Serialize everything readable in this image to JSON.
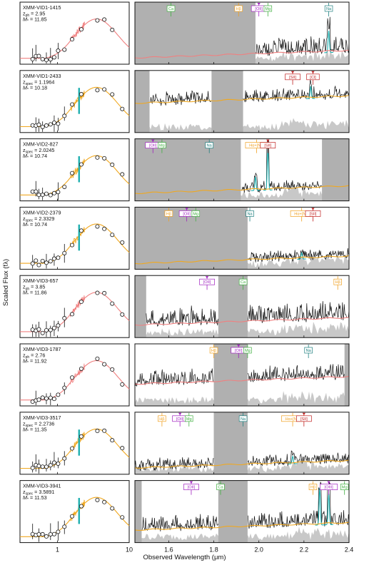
{
  "axes": {
    "ylabel": "Scaled Flux (fλ)",
    "xlabel": "Observed Wavelength (μm)",
    "sed_ticks": [
      "1",
      "10"
    ],
    "spec_ticks": [
      "1.6",
      "1.8",
      "2.0",
      "2.2",
      "2.4"
    ]
  },
  "colors": {
    "sed_photz": "#f08080",
    "sed_spec": "#f0a820",
    "line_fit": "#20b0b0",
    "mask": "#b0b0b0",
    "noise": "#c8c8c8",
    "tag_orange": "#f0a020",
    "tag_purple": "#a020c0",
    "tag_green": "#40b040",
    "tag_teal": "#208080",
    "tag_red": "#c02020"
  },
  "panels": [
    {
      "name": "XMM-VID1-1415",
      "z": "z_ph = 2.95",
      "mass": "M* = 11.85",
      "zkind": "ph",
      "zval": "2.95",
      "mval": "11.85",
      "tags": [
        {
          "t": "Ca",
          "c": "tag_green",
          "x": 1.61
        },
        {
          "t": "Hβ",
          "c": "tag_orange",
          "x": 1.91
        },
        {
          "t": "[OII]",
          "c": "tag_purple",
          "x": 2.0
        },
        {
          "t": "Mg",
          "c": "tag_green",
          "x": 2.04
        },
        {
          "t": "Na",
          "c": "tag_teal",
          "x": 2.31
        }
      ]
    },
    {
      "name": "XMM-VID1-2433",
      "z": "z_spec = 1.1964",
      "mass": "M* = 10.18",
      "zkind": "spec",
      "zval": "1.1964",
      "mval": "10.18",
      "tags": [
        {
          "t": "[SII]",
          "c": "tag_red",
          "x": 2.15
        },
        {
          "t": "[Cl]",
          "c": "tag_red",
          "x": 2.24
        }
      ]
    },
    {
      "name": "XMM-VID2-827",
      "z": "z_spec = 2.0245",
      "mass": "M* = 10.74",
      "zkind": "spec",
      "zval": "2.0245",
      "mval": "10.74",
      "tags": [
        {
          "t": "[OII]",
          "c": "tag_purple",
          "x": 1.53
        },
        {
          "t": "Mg",
          "c": "tag_green",
          "x": 1.57
        },
        {
          "t": "Na",
          "c": "tag_teal",
          "x": 1.78
        },
        {
          "t": "Hα+[NII]",
          "c": "tag_orange",
          "x": 1.99
        },
        {
          "t": "[SII]",
          "c": "tag_red",
          "x": 2.04
        }
      ]
    },
    {
      "name": "XMM-VID2-2379",
      "z": "z_spec = 2.3329",
      "mass": "M* = 10.74",
      "zkind": "spec",
      "zval": "2.3329",
      "mval": "10.74",
      "tags": [
        {
          "t": "Hβ",
          "c": "tag_orange",
          "x": 1.6
        },
        {
          "t": "[OII]",
          "c": "tag_purple",
          "x": 1.68
        },
        {
          "t": "Mg",
          "c": "tag_green",
          "x": 1.72
        },
        {
          "t": "Na",
          "c": "tag_teal",
          "x": 1.96
        },
        {
          "t": "Hα+[NII]",
          "c": "tag_orange",
          "x": 2.19
        },
        {
          "t": "[SII]",
          "c": "tag_red",
          "x": 2.24
        }
      ]
    },
    {
      "name": "XMM-VID3-657",
      "z": "z_ph = 3.85",
      "mass": "M* = 11.86",
      "zkind": "ph",
      "zval": "3.85",
      "mval": "11.86",
      "tags": [
        {
          "t": "[OII]",
          "c": "tag_purple",
          "x": 1.77
        },
        {
          "t": "Ca",
          "c": "tag_green",
          "x": 1.93
        },
        {
          "t": "Hβ",
          "c": "tag_orange",
          "x": 2.35
        }
      ]
    },
    {
      "name": "XMM-VID3-1787",
      "z": "z_ph = 2.76",
      "mass": "M* = 11.92",
      "zkind": "ph",
      "zval": "2.76",
      "mval": "11.92",
      "tags": [
        {
          "t": "Hβ",
          "c": "tag_orange",
          "x": 1.8
        },
        {
          "t": "[OII]",
          "c": "tag_purple",
          "x": 1.91
        },
        {
          "t": "Mg",
          "c": "tag_green",
          "x": 1.95
        },
        {
          "t": "Na",
          "c": "tag_teal",
          "x": 2.22
        }
      ]
    },
    {
      "name": "XMM-VID3-3517",
      "z": "z_spec = 2.2736",
      "mass": "M* = 11.35",
      "zkind": "spec",
      "zval": "2.2736",
      "mval": "11.35",
      "tags": [
        {
          "t": "Hβ",
          "c": "tag_orange",
          "x": 1.57
        },
        {
          "t": "[OII]",
          "c": "tag_purple",
          "x": 1.65
        },
        {
          "t": "Mg",
          "c": "tag_green",
          "x": 1.69
        },
        {
          "t": "Na",
          "c": "tag_teal",
          "x": 1.93
        },
        {
          "t": "Hα+[NII]",
          "c": "tag_orange",
          "x": 2.15
        },
        {
          "t": "[SII]",
          "c": "tag_red",
          "x": 2.2
        }
      ]
    },
    {
      "name": "XMM-VID3-3941",
      "z": "z_spec = 3.5891",
      "mass": "M* = 11.53",
      "zkind": "spec",
      "zval": "3.5891",
      "mval": "11.53",
      "tags": [
        {
          "t": "[OII]",
          "c": "tag_purple",
          "x": 1.7
        },
        {
          "t": "Ca",
          "c": "tag_green",
          "x": 1.83
        },
        {
          "t": "Hβ",
          "c": "tag_orange",
          "x": 2.24
        },
        {
          "t": "[OIII]",
          "c": "tag_purple",
          "x": 2.31
        },
        {
          "t": "Mg",
          "c": "tag_green",
          "x": 2.38
        }
      ]
    }
  ],
  "chart_data": {
    "type": "line",
    "xlabel": "Observed Wavelength (μm)",
    "ylabel": "Scaled Flux (fλ)",
    "sed_xlim": [
      0.3,
      10
    ],
    "sed_xscale": "log",
    "spec_xlim": [
      1.45,
      2.4
    ],
    "grid": false
  }
}
